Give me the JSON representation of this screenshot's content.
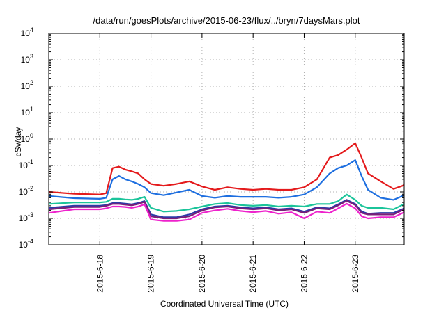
{
  "chart_data": {
    "type": "line",
    "title": "/data/run/goesPlots/archive/2015-06-23/flux/../bryn/7daysMars.plot",
    "xlabel": "Coordinated Universal Time (UTC)",
    "ylabel": "cSv/day",
    "yscale": "log",
    "ylim": [
      0.0001,
      10000
    ],
    "y_ticks": [
      {
        "base": "10",
        "exp": "-4",
        "value": 0.0001
      },
      {
        "base": "10",
        "exp": "-3",
        "value": 0.001
      },
      {
        "base": "10",
        "exp": "-2",
        "value": 0.01
      },
      {
        "base": "10",
        "exp": "-1",
        "value": 0.1
      },
      {
        "base": "10",
        "exp": "0",
        "value": 1
      },
      {
        "base": "10",
        "exp": "1",
        "value": 10
      },
      {
        "base": "10",
        "exp": "2",
        "value": 100
      },
      {
        "base": "10",
        "exp": "3",
        "value": 1000
      },
      {
        "base": "10",
        "exp": "4",
        "value": 10000
      }
    ],
    "xlim": [
      "2015-06-17 00:00",
      "2015-06-23 23:00"
    ],
    "x_ticks": [
      "2015-6-18",
      "2015-6-19",
      "2015-6-20",
      "2015-6-21",
      "2015-6-22",
      "2015-6-23"
    ],
    "x": [
      "2015-06-17 00:00",
      "2015-06-17 12:00",
      "2015-06-18 00:00",
      "2015-06-18 03:00",
      "2015-06-18 06:00",
      "2015-06-18 09:00",
      "2015-06-18 12:00",
      "2015-06-18 15:00",
      "2015-06-18 18:00",
      "2015-06-18 21:00",
      "2015-06-19 00:00",
      "2015-06-19 06:00",
      "2015-06-19 12:00",
      "2015-06-19 18:00",
      "2015-06-20 00:00",
      "2015-06-20 06:00",
      "2015-06-20 12:00",
      "2015-06-20 18:00",
      "2015-06-21 00:00",
      "2015-06-21 06:00",
      "2015-06-21 12:00",
      "2015-06-21 18:00",
      "2015-06-22 00:00",
      "2015-06-22 06:00",
      "2015-06-22 12:00",
      "2015-06-22 16:00",
      "2015-06-22 20:00",
      "2015-06-23 00:00",
      "2015-06-23 03:00",
      "2015-06-23 06:00",
      "2015-06-23 12:00",
      "2015-06-23 18:00",
      "2015-06-23 23:00"
    ],
    "series": [
      {
        "color": "#e41a1c",
        "values": [
          0.01,
          0.0085,
          0.008,
          0.009,
          0.08,
          0.09,
          0.07,
          0.06,
          0.05,
          0.03,
          0.02,
          0.017,
          0.02,
          0.025,
          0.016,
          0.012,
          0.015,
          0.013,
          0.012,
          0.013,
          0.012,
          0.012,
          0.015,
          0.03,
          0.2,
          0.25,
          0.4,
          0.7,
          0.2,
          0.05,
          0.025,
          0.013,
          0.018
        ]
      },
      {
        "color": "#1e6fe0",
        "values": [
          0.007,
          0.0058,
          0.0055,
          0.006,
          0.03,
          0.04,
          0.03,
          0.025,
          0.02,
          0.015,
          0.009,
          0.0075,
          0.0095,
          0.012,
          0.007,
          0.006,
          0.007,
          0.0065,
          0.0065,
          0.0065,
          0.006,
          0.0065,
          0.008,
          0.015,
          0.05,
          0.08,
          0.1,
          0.16,
          0.04,
          0.012,
          0.006,
          0.005,
          0.0075
        ]
      },
      {
        "color": "#1bc49a",
        "values": [
          0.0035,
          0.004,
          0.004,
          0.0042,
          0.0055,
          0.0055,
          0.0052,
          0.005,
          0.0055,
          0.0065,
          0.0025,
          0.0018,
          0.0019,
          0.0022,
          0.0028,
          0.0035,
          0.0038,
          0.0032,
          0.003,
          0.0032,
          0.0028,
          0.003,
          0.0028,
          0.0035,
          0.0035,
          0.0045,
          0.008,
          0.005,
          0.003,
          0.0025,
          0.0025,
          0.0022,
          0.0035
        ]
      },
      {
        "color": "#2b3aa8",
        "values": [
          0.0025,
          0.003,
          0.003,
          0.0032,
          0.0038,
          0.0038,
          0.0036,
          0.0034,
          0.0038,
          0.0045,
          0.0014,
          0.0011,
          0.0011,
          0.0014,
          0.0022,
          0.0028,
          0.003,
          0.0026,
          0.0024,
          0.0026,
          0.0022,
          0.0024,
          0.0018,
          0.0026,
          0.0024,
          0.0034,
          0.005,
          0.0035,
          0.0018,
          0.0015,
          0.0016,
          0.0016,
          0.0024
        ]
      },
      {
        "color": "#7a1e78",
        "values": [
          0.0022,
          0.0027,
          0.0027,
          0.003,
          0.0035,
          0.0035,
          0.0033,
          0.0031,
          0.0035,
          0.0042,
          0.0012,
          0.001,
          0.001,
          0.0012,
          0.002,
          0.0026,
          0.0028,
          0.0024,
          0.0022,
          0.0024,
          0.002,
          0.0022,
          0.0016,
          0.0024,
          0.0022,
          0.0031,
          0.0046,
          0.0032,
          0.0016,
          0.0014,
          0.0014,
          0.0014,
          0.0022
        ]
      },
      {
        "color": "#ee22cc",
        "values": [
          0.0016,
          0.0022,
          0.0022,
          0.0024,
          0.0028,
          0.0028,
          0.0027,
          0.0025,
          0.0028,
          0.0034,
          0.0009,
          0.0008,
          0.0008,
          0.0009,
          0.0016,
          0.002,
          0.0023,
          0.0019,
          0.0017,
          0.0019,
          0.0015,
          0.0017,
          0.001,
          0.0018,
          0.0016,
          0.0024,
          0.0036,
          0.0024,
          0.0012,
          0.001,
          0.0011,
          0.0011,
          0.0017
        ]
      }
    ]
  }
}
